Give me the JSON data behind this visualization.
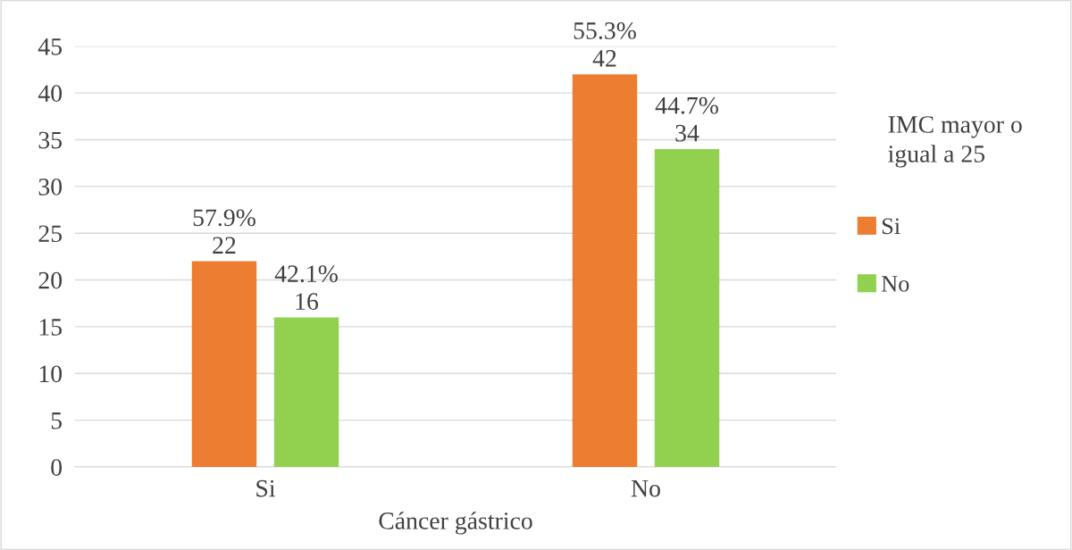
{
  "chart_data": {
    "type": "bar",
    "categories": [
      "Si",
      "No"
    ],
    "xlabel": "Cáncer gástrico",
    "legend_title": "IMC mayor o igual a 25",
    "series": [
      {
        "name": "Si",
        "color": "#ed7d31",
        "values": [
          22,
          42
        ],
        "value_labels": [
          "57.9%\n22",
          "55.3%\n42"
        ]
      },
      {
        "name": "No",
        "color": "#92d050",
        "values": [
          16,
          34
        ],
        "value_labels": [
          "42.1%\n16",
          "44.7%\n34"
        ]
      }
    ],
    "ylim": [
      0,
      45
    ],
    "yticks": [
      0,
      5,
      10,
      15,
      20,
      25,
      30,
      35,
      40,
      45
    ],
    "grid": "y",
    "legend": "right"
  }
}
